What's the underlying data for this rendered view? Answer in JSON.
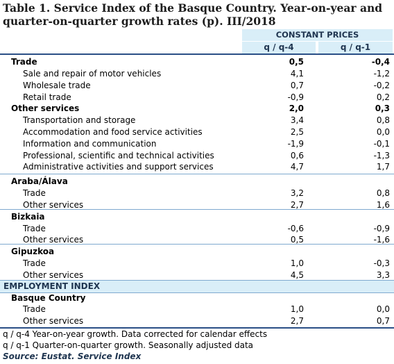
{
  "title": "Table 1. Service Index of the Basque Country. Year-on-year and quarter-on-quarter growth rates (p). III/2018",
  "header": {
    "group": "CONSTANT PRICES",
    "col1": "q / q-4",
    "col2": "q / q-1"
  },
  "rows": [
    {
      "label": "Trade",
      "v1": "0,5",
      "v2": "-0,4",
      "level": 1,
      "bold": true
    },
    {
      "label": "Sale and repair of motor vehicles",
      "v1": "4,1",
      "v2": "-1,2",
      "level": 2,
      "bold": false
    },
    {
      "label": "Wholesale trade",
      "v1": "0,7",
      "v2": "-0,2",
      "level": 2,
      "bold": false
    },
    {
      "label": "Retail trade",
      "v1": "-0,9",
      "v2": "0,2",
      "level": 2,
      "bold": false
    },
    {
      "label": "Other services",
      "v1": "2,0",
      "v2": "0,3",
      "level": 1,
      "bold": true
    },
    {
      "label": "Transportation and storage",
      "v1": "3,4",
      "v2": "0,8",
      "level": 2,
      "bold": false
    },
    {
      "label": "Accommodation and food service activities",
      "v1": "2,5",
      "v2": "0,0",
      "level": 2,
      "bold": false
    },
    {
      "label": "Information and communication",
      "v1": "-1,9",
      "v2": "-0,1",
      "level": 2,
      "bold": false
    },
    {
      "label": "Professional, scientific and technical activities",
      "v1": "0,6",
      "v2": "-1,3",
      "level": 2,
      "bold": false
    },
    {
      "label": "Administrative activities and support services",
      "v1": "4,7",
      "v2": "1,7",
      "level": 2,
      "bold": false
    },
    {
      "label": "Araba/Álava",
      "v1": "",
      "v2": "",
      "level": 1,
      "bold": true
    },
    {
      "label": "Trade",
      "v1": "3,2",
      "v2": "0,8",
      "level": 2,
      "bold": false
    },
    {
      "label": "Other services",
      "v1": "2,7",
      "v2": "1,6",
      "level": 2,
      "bold": false
    },
    {
      "label": "Bizkaia",
      "v1": "",
      "v2": "",
      "level": 1,
      "bold": true
    },
    {
      "label": "Trade",
      "v1": "-0,6",
      "v2": "-0,9",
      "level": 2,
      "bold": false
    },
    {
      "label": "Other services",
      "v1": "0,5",
      "v2": "-1,6",
      "level": 2,
      "bold": false
    },
    {
      "label": "Gipuzkoa",
      "v1": "",
      "v2": "",
      "level": 1,
      "bold": true
    },
    {
      "label": "Trade",
      "v1": "1,0",
      "v2": "-0,3",
      "level": 2,
      "bold": false
    },
    {
      "label": "Other services",
      "v1": "4,5",
      "v2": "3,3",
      "level": 2,
      "bold": false
    }
  ],
  "employment": {
    "heading": "EMPLOYMENT INDEX",
    "rows": [
      {
        "label": "Basque Country",
        "v1": "",
        "v2": "",
        "level": 1,
        "bold": true
      },
      {
        "label": "Trade",
        "v1": "1,0",
        "v2": "0,0",
        "level": 2,
        "bold": false
      },
      {
        "label": "Other services",
        "v1": "2,7",
        "v2": "0,7",
        "level": 2,
        "bold": false
      }
    ]
  },
  "notes": {
    "note1": "q / q-4 Year-on-year growth. Data corrected for calendar effects",
    "note2": "q / q-1 Quarter-on-quarter growth. Seasonally adjusted data",
    "source": "Source: Eustat. Service Index"
  },
  "colors": {
    "header_band": "#d9eef8",
    "rule": "#2a4f86",
    "header_text": "#1f3550"
  }
}
